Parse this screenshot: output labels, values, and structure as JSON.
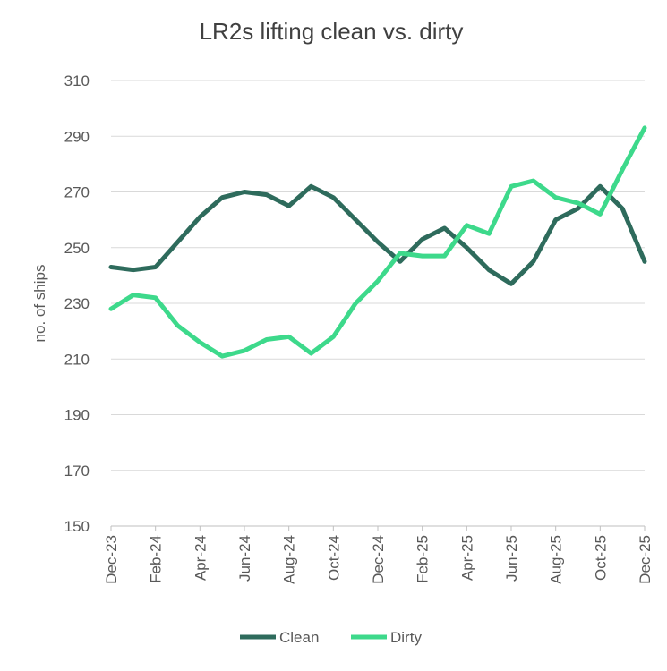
{
  "chart_data": {
    "type": "line",
    "title": "LR2s lifting clean vs. dirty",
    "y_label": "no. of ships",
    "categories": [
      "Dec-23",
      null,
      "Feb-24",
      null,
      "Apr-24",
      null,
      "Jun-24",
      null,
      "Aug-24",
      null,
      "Oct-24",
      null,
      "Dec-24",
      null,
      "Feb-25",
      null,
      "Apr-25",
      null,
      "Jun-25",
      null,
      "Aug-25",
      null,
      "Oct-25",
      null,
      "Dec-25"
    ],
    "series": [
      {
        "name": "Clean",
        "color": "#2e6b5c",
        "values": [
          243,
          242,
          243,
          252,
          261,
          268,
          270,
          269,
          265,
          272,
          268,
          260,
          252,
          245,
          253,
          257,
          250,
          242,
          237,
          245,
          260,
          264,
          272,
          264,
          245
        ]
      },
      {
        "name": "Dirty",
        "color": "#3dd98b",
        "values": [
          228,
          233,
          232,
          222,
          216,
          211,
          213,
          217,
          218,
          212,
          218,
          230,
          238,
          248,
          247,
          247,
          258,
          255,
          272,
          274,
          268,
          266,
          262,
          278,
          293
        ]
      }
    ],
    "ylim": [
      150,
      310
    ],
    "yticks": [
      150,
      170,
      190,
      210,
      230,
      250,
      270,
      290,
      310
    ],
    "grid": true,
    "legend": "bottom"
  }
}
